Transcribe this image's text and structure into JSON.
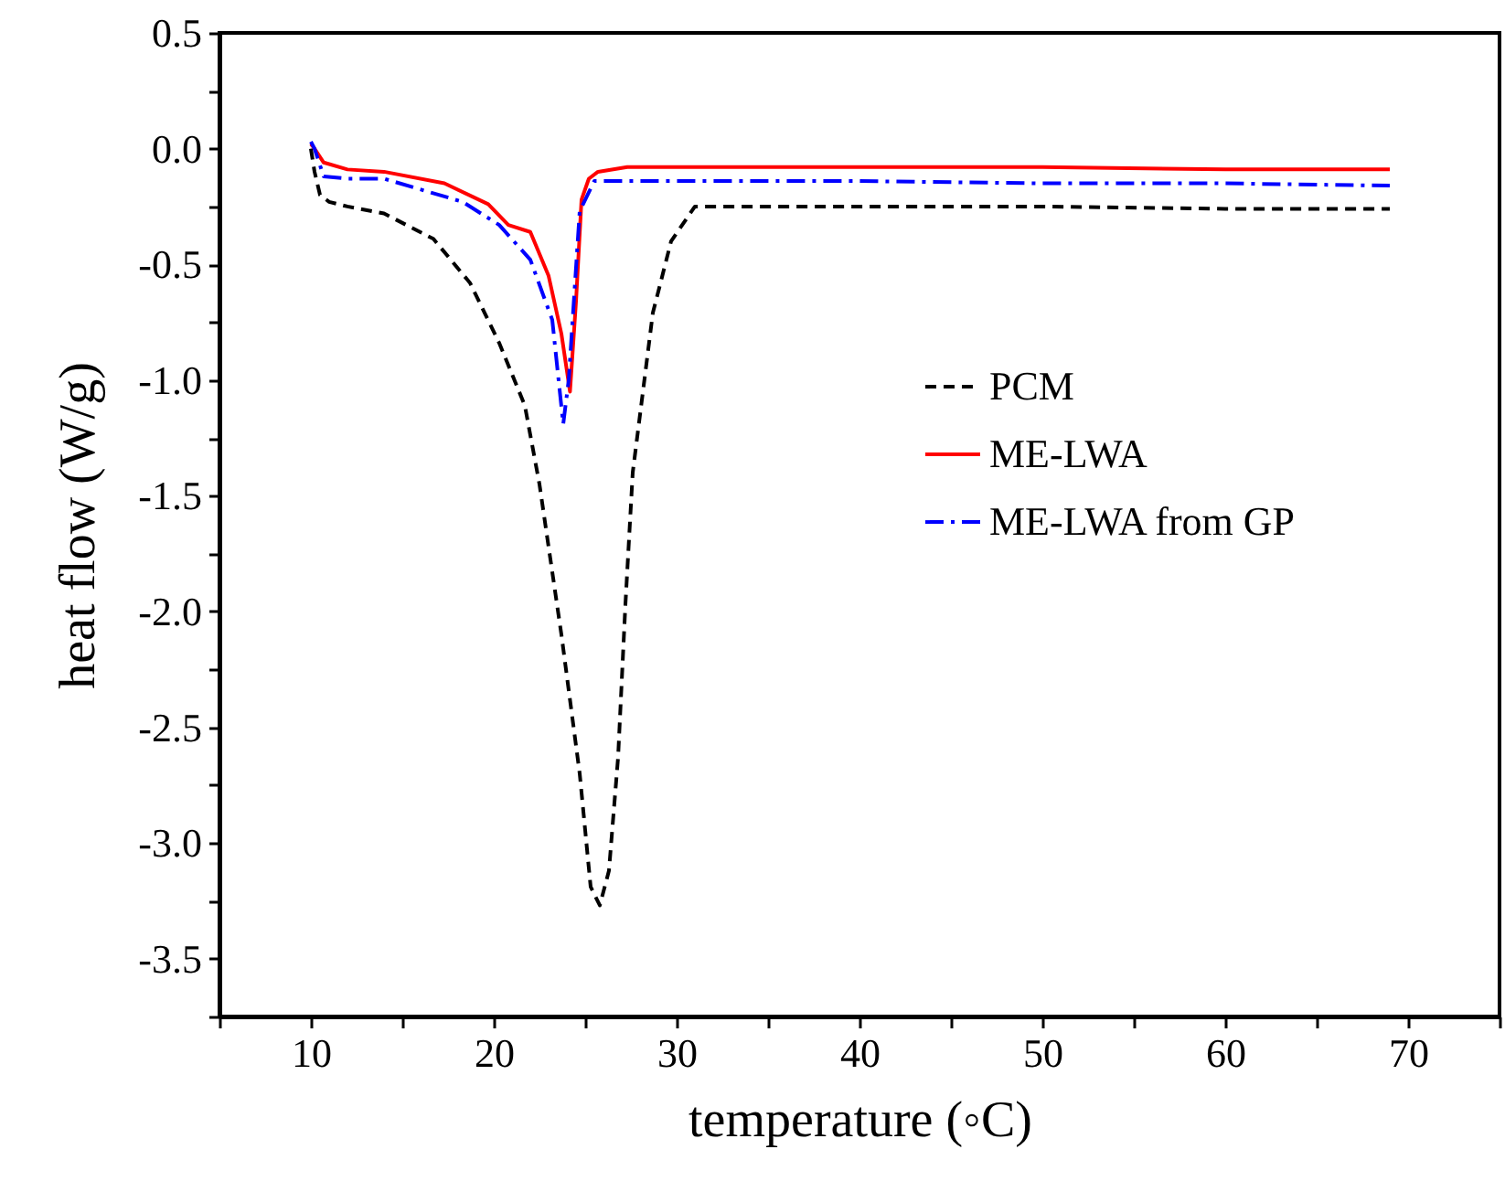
{
  "chart_data": {
    "type": "line",
    "xlabel": "temperature (◦C)",
    "ylabel": "heat flow (W/g)",
    "xlim": [
      5,
      75
    ],
    "ylim": [
      -3.75,
      0.5
    ],
    "xticks": [
      {
        "value": 5,
        "label": null
      },
      10,
      {
        "value": 15,
        "label": null
      },
      20,
      {
        "value": 25,
        "label": null
      },
      30,
      {
        "value": 35,
        "label": null
      },
      40,
      {
        "value": 45,
        "label": null
      },
      50,
      {
        "value": 55,
        "label": null
      },
      60,
      {
        "value": 65,
        "label": null
      },
      70,
      {
        "value": 75,
        "label": null
      }
    ],
    "yticks": [
      {
        "value": -3.75,
        "label": null
      },
      {
        "value": -3.5,
        "label": "-3.5"
      },
      {
        "value": -3.25,
        "label": null
      },
      {
        "value": -3,
        "label": "-3.0"
      },
      {
        "value": -2.75,
        "label": null
      },
      {
        "value": -2.5,
        "label": "-2.5"
      },
      {
        "value": -2.25,
        "label": null
      },
      {
        "value": -2,
        "label": "-2.0"
      },
      {
        "value": -1.75,
        "label": null
      },
      {
        "value": -1.5,
        "label": "-1.5"
      },
      {
        "value": -1.25,
        "label": null
      },
      {
        "value": -1,
        "label": "-1.0"
      },
      {
        "value": -0.75,
        "label": null
      },
      {
        "value": -0.5,
        "label": "-0.5"
      },
      {
        "value": -0.25,
        "label": null
      },
      {
        "value": 0,
        "label": "0.0"
      },
      {
        "value": 0.25,
        "label": null
      },
      {
        "value": 0.5,
        "label": "0.5"
      }
    ],
    "grid": false,
    "legend": "right",
    "marker": "none",
    "series": [
      {
        "name": "PCM",
        "color": "#000000",
        "line_style": "dashed",
        "x": [
          10,
          10.2,
          10.5,
          11,
          12,
          14,
          16.7,
          18.7,
          20.3,
          21.7,
          22.5,
          23.7,
          24.7,
          25.3,
          25.8,
          26.3,
          26.8,
          27.2,
          27.6,
          28.7,
          29.7,
          31,
          40,
          50,
          60,
          69
        ],
        "values": [
          0.0,
          -0.1,
          -0.2,
          -0.23,
          -0.25,
          -0.28,
          -0.39,
          -0.58,
          -0.84,
          -1.11,
          -1.45,
          -2.1,
          -2.7,
          -3.19,
          -3.27,
          -3.12,
          -2.63,
          -1.97,
          -1.4,
          -0.71,
          -0.4,
          -0.25,
          -0.25,
          -0.25,
          -0.26,
          -0.26
        ]
      },
      {
        "name": "ME-LWA",
        "color": "#ff0000",
        "line_style": "solid",
        "x": [
          10,
          10.2,
          10.7,
          12,
          14,
          17.3,
          19.7,
          20.8,
          22,
          23,
          23.7,
          24.17,
          24.5,
          24.8,
          25.2,
          25.7,
          27.3,
          40,
          50,
          60,
          69
        ],
        "values": [
          0.02,
          0.0,
          -0.06,
          -0.09,
          -0.1,
          -0.15,
          -0.24,
          -0.33,
          -0.36,
          -0.55,
          -0.8,
          -1.05,
          -0.66,
          -0.22,
          -0.13,
          -0.1,
          -0.08,
          -0.08,
          -0.08,
          -0.09,
          -0.09
        ]
      },
      {
        "name": "ME-LWA from GP",
        "color": "#0000ff",
        "line_style": "dashdot",
        "x": [
          10,
          10.2,
          10.7,
          12,
          14,
          18.3,
          20.3,
          22,
          23.2,
          23.8,
          24.1,
          24.7,
          25.5,
          27,
          40,
          50,
          60,
          69
        ],
        "values": [
          0.03,
          0.0,
          -0.12,
          -0.13,
          -0.13,
          -0.23,
          -0.33,
          -0.48,
          -0.74,
          -1.19,
          -1.0,
          -0.27,
          -0.14,
          -0.14,
          -0.14,
          -0.15,
          -0.15,
          -0.16
        ]
      }
    ]
  }
}
